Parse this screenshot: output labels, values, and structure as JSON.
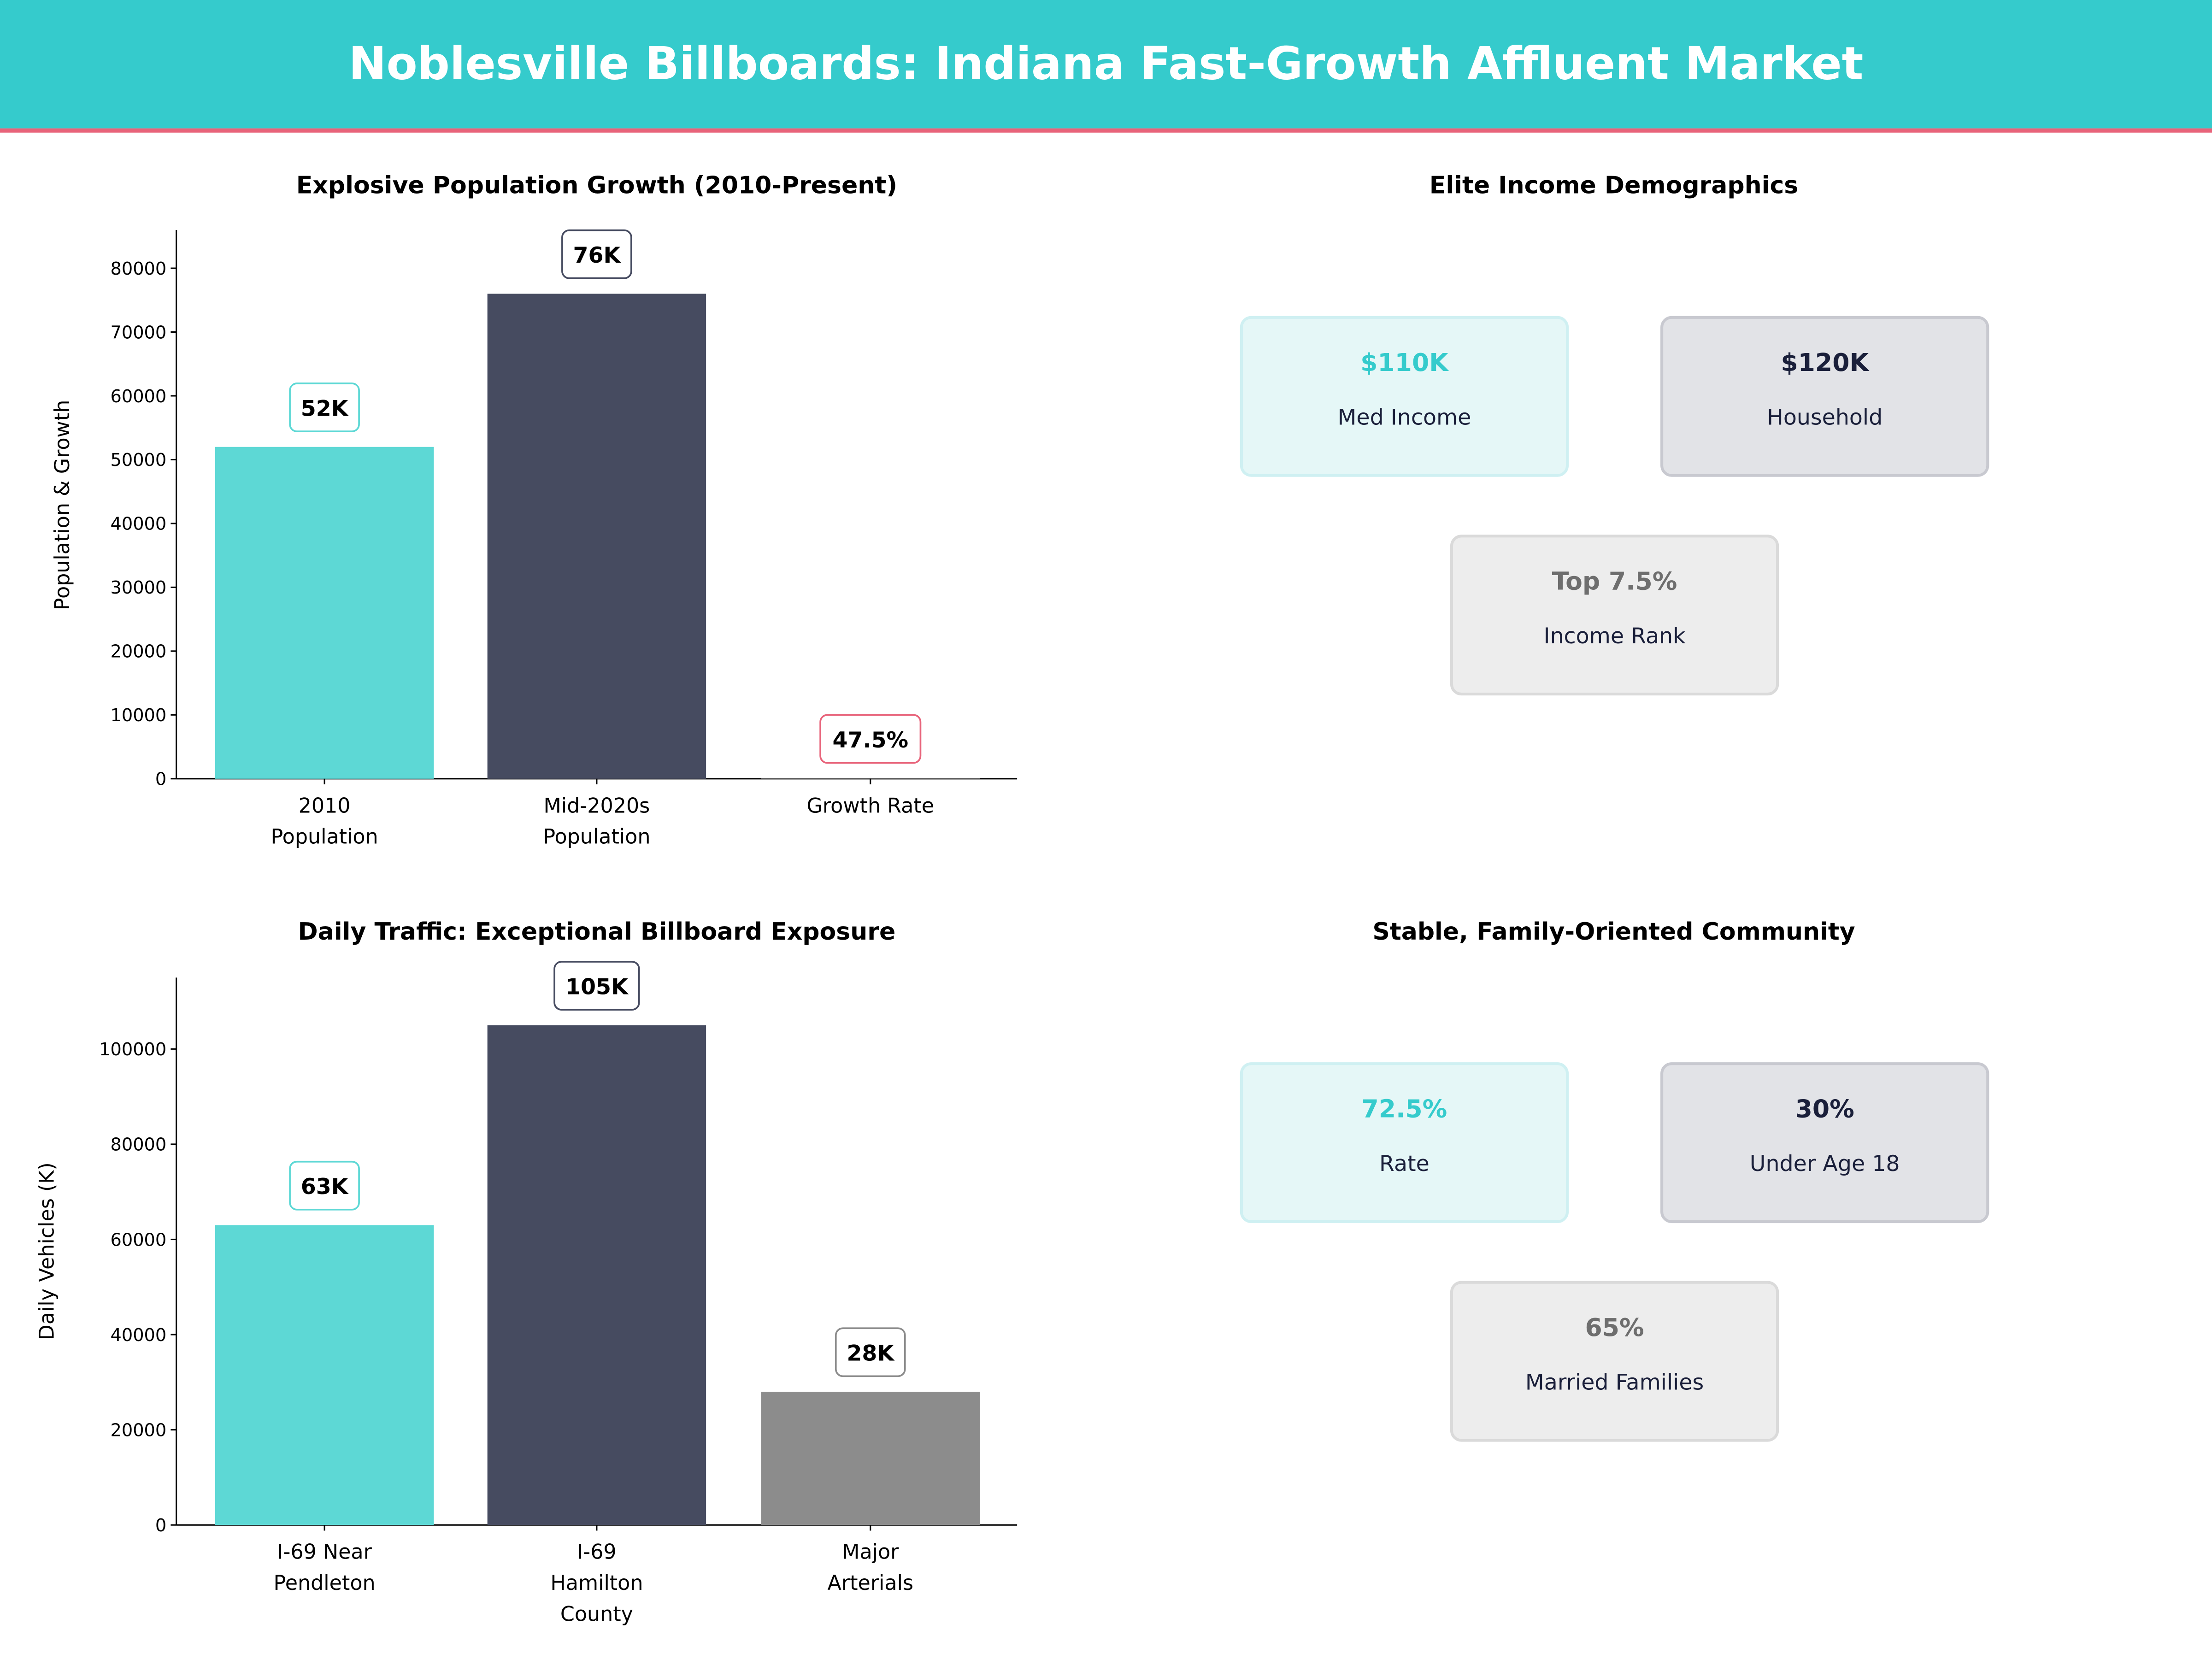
{
  "header": {
    "title": "Noblesville Billboards: Indiana Fast-Growth Affluent Market",
    "bg_color": "#35CBCC",
    "accent_line_color": "#E8637A"
  },
  "chart_data": [
    {
      "type": "bar",
      "title": "Explosive Population Growth (2010-Present)",
      "ylabel": "Population & Growth",
      "xlabel": "",
      "categories": [
        [
          "2010",
          "Population"
        ],
        [
          "Mid-2020s",
          "Population"
        ],
        [
          "Growth Rate"
        ]
      ],
      "values": [
        52000,
        76000,
        47.5
      ],
      "data_labels": [
        "52K",
        "76K",
        "47.5%"
      ],
      "colors": [
        "#5DD8D5",
        "#464B60",
        "#8C8C8C"
      ],
      "label_border_colors": [
        "#5DD8D5",
        "#464B60",
        "#E8637A"
      ],
      "ylim": [
        0,
        86000
      ],
      "yticks": [
        0,
        10000,
        20000,
        30000,
        40000,
        50000,
        60000,
        70000,
        80000
      ],
      "grid": false
    },
    {
      "type": "bar",
      "title": "Daily Traffic: Exceptional Billboard Exposure",
      "ylabel": "Daily Vehicles (K)",
      "xlabel": "",
      "categories": [
        [
          "I-69 Near",
          "Pendleton"
        ],
        [
          "I-69",
          "Hamilton",
          "County"
        ],
        [
          "Major",
          "Arterials"
        ]
      ],
      "values": [
        63000,
        105000,
        28000
      ],
      "data_labels": [
        "63K",
        "105K",
        "28K"
      ],
      "colors": [
        "#5DD8D5",
        "#464B60",
        "#8C8C8C"
      ],
      "label_border_colors": [
        "#5DD8D5",
        "#464B60",
        "#8C8C8C"
      ],
      "ylim": [
        0,
        115000
      ],
      "yticks": [
        0,
        20000,
        40000,
        60000,
        80000,
        100000
      ],
      "grid": false
    }
  ],
  "income_panel": {
    "title": "Elite Income Demographics",
    "cards": [
      {
        "value": "$110K",
        "label": "Med Income"
      },
      {
        "value": "$120K",
        "label": "Household"
      },
      {
        "value": "Top 7.5%",
        "label": "Income Rank"
      }
    ]
  },
  "community_panel": {
    "title": "Stable, Family-Oriented Community",
    "cards": [
      {
        "value": "72.5%",
        "label": "Rate"
      },
      {
        "value": "30%",
        "label": "Under Age 18"
      },
      {
        "value": "65%",
        "label": "Married Families"
      }
    ]
  },
  "card_styles": [
    {
      "bg": "#E5F7F7",
      "border": "#CFF0F2",
      "value_color": "#35CBCC"
    },
    {
      "bg": "#E2E3E7",
      "border": "#C8C9D0",
      "value_color": "#1A1F3A"
    },
    {
      "bg": "#EDEDED",
      "border": "#DADADA",
      "value_color": "#6E6E6E"
    }
  ]
}
